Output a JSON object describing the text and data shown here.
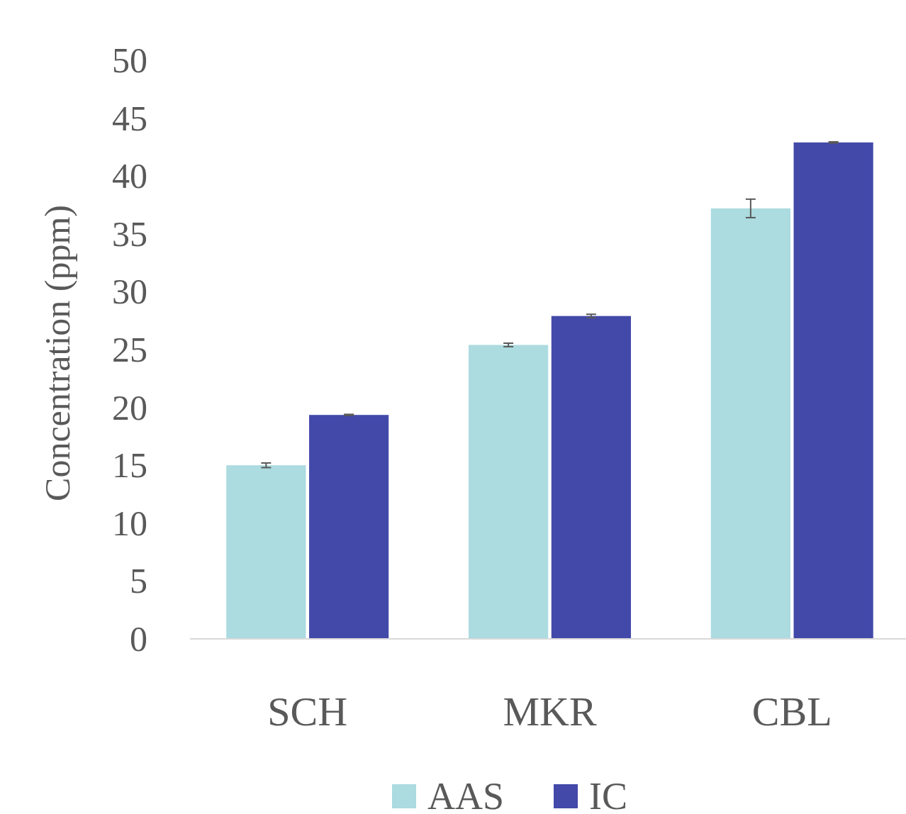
{
  "chart_data": {
    "type": "bar",
    "ylabel": "Concentration (ppm)",
    "categories": [
      "SCH",
      "MKR",
      "CBL"
    ],
    "series": [
      {
        "name": "AAS",
        "color": "#acdbe0",
        "values": [
          15.0,
          25.4,
          37.2
        ],
        "errors": [
          0.2,
          0.15,
          0.8
        ]
      },
      {
        "name": "IC",
        "color": "#4349a9",
        "values": [
          19.35,
          27.9,
          42.9
        ],
        "errors": [
          0.05,
          0.15,
          0.05
        ]
      }
    ],
    "ylim": [
      0,
      50
    ],
    "yticks": [
      0,
      5,
      10,
      15,
      20,
      25,
      30,
      35,
      40,
      45,
      50
    ],
    "grid": false,
    "legend": "bottom"
  }
}
